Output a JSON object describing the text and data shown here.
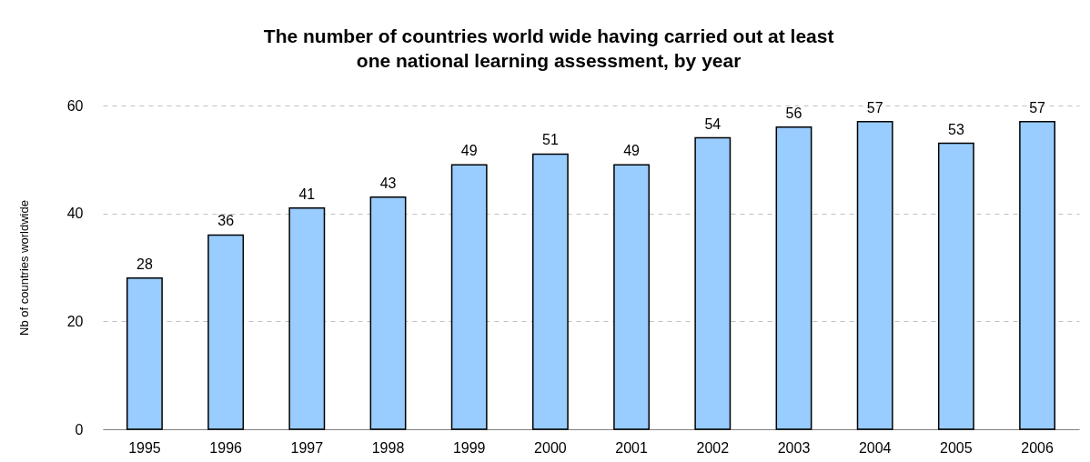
{
  "chart_data": {
    "type": "bar",
    "title": "The number of countries world wide having carried out at least one national learning assessment, by year",
    "ylabel": "Nb of countries worldwide",
    "categories": [
      "1995",
      "1996",
      "1997",
      "1998",
      "1999",
      "2000",
      "2001",
      "2002",
      "2003",
      "2004",
      "2005",
      "2006"
    ],
    "values": [
      28,
      36,
      41,
      43,
      49,
      51,
      49,
      54,
      56,
      57,
      53,
      57
    ],
    "color": "#99ccff",
    "ylim": [
      0,
      60
    ],
    "yticks": [
      0,
      20,
      40,
      60
    ],
    "grid": "y",
    "data_labels": true
  }
}
